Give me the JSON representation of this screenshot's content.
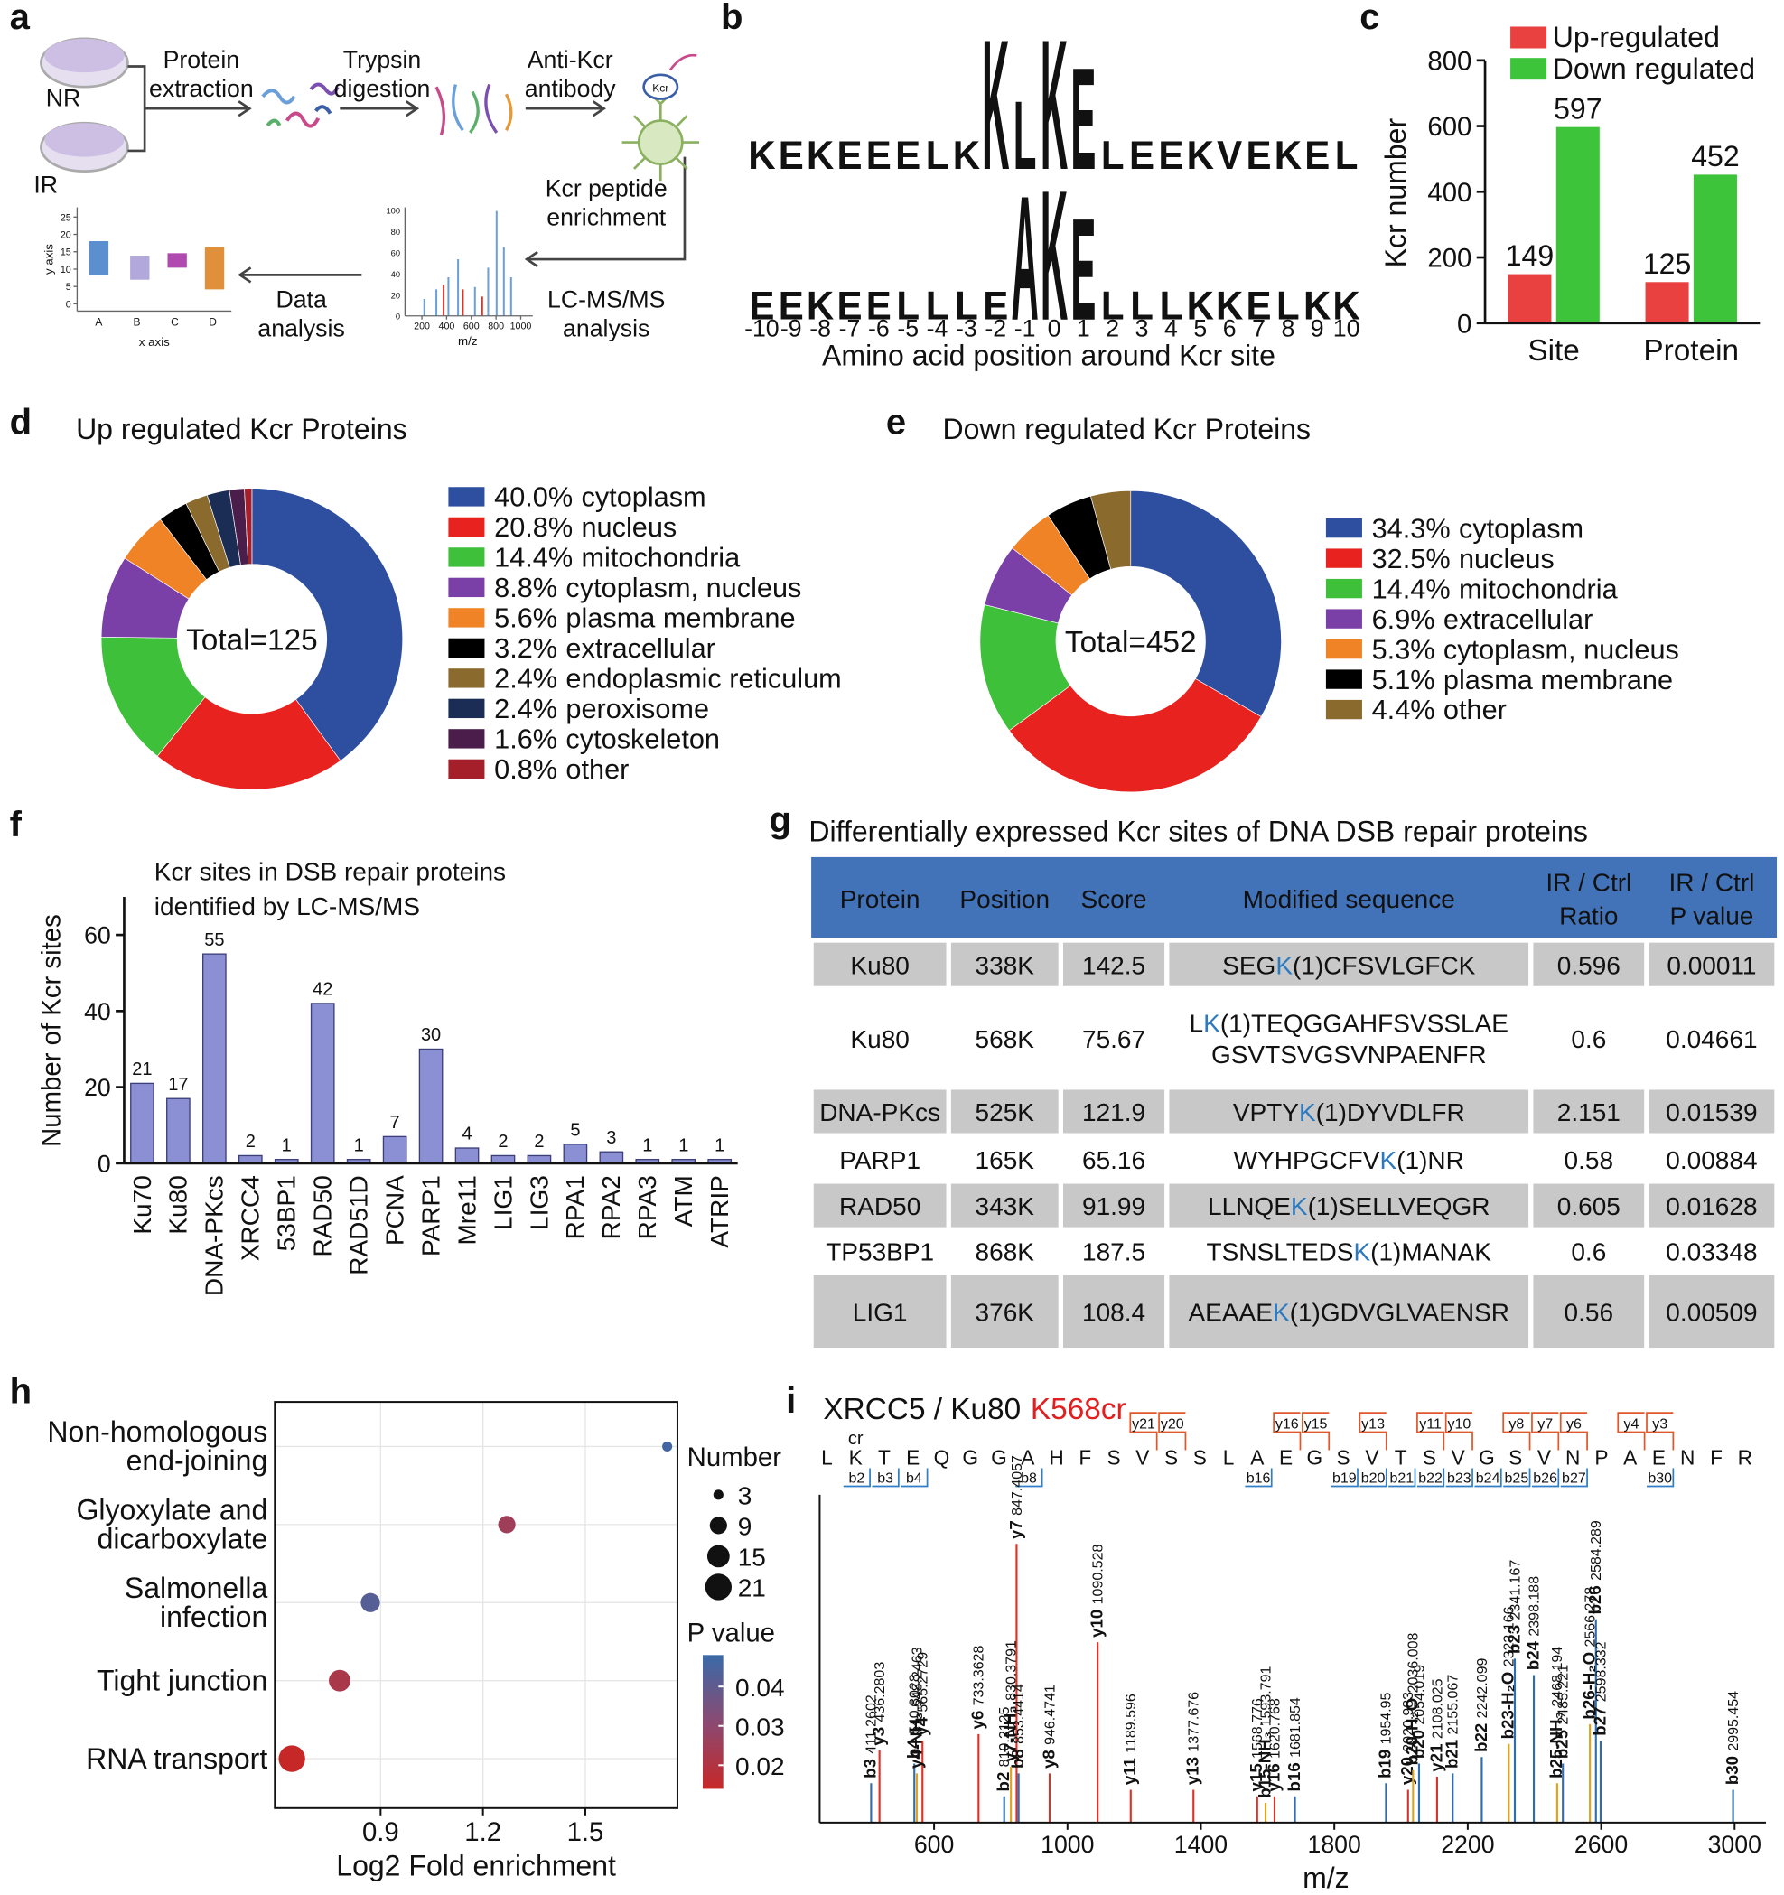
{
  "panel_labels": [
    "a",
    "b",
    "c",
    "d",
    "e",
    "f",
    "g",
    "h",
    "i"
  ],
  "workflow": {
    "samples": [
      "NR",
      "IR"
    ],
    "steps": [
      [
        "Protein",
        "extraction"
      ],
      [
        "Trypsin",
        "digestion"
      ],
      [
        "Anti-Kcr",
        "antibody"
      ],
      [
        "Kcr peptide",
        "enrichment"
      ],
      [
        "LC-MS/MS",
        "analysis"
      ],
      [
        "Data",
        "analysis"
      ]
    ],
    "antibody_label": "Kcr",
    "boxplot_icon": {
      "yticks": [
        0,
        5,
        10,
        15,
        20,
        25
      ],
      "categories": [
        "A",
        "B",
        "C",
        "D"
      ],
      "ylabel": "y axis",
      "xlabel": "x axis"
    },
    "spectrum_icon": {
      "xticks": [
        200,
        400,
        600,
        800,
        1000
      ],
      "yticks": [
        0,
        20,
        40,
        60,
        80,
        100
      ],
      "xlabel": "m/z"
    }
  },
  "logo": {
    "rows": [
      {
        "letters": [
          "K",
          "E",
          "K",
          "E",
          "E",
          "E",
          "L",
          "K",
          "K",
          "L",
          "K",
          "E",
          "L",
          "E",
          "E",
          "K",
          "V",
          "E",
          "K",
          "E",
          "L"
        ],
        "heights": [
          1,
          1,
          1,
          1,
          1,
          1,
          1,
          1,
          4.6,
          2.4,
          4.6,
          3.6,
          1,
          1,
          1,
          1,
          1,
          1,
          1,
          1,
          1
        ]
      },
      {
        "letters": [
          "E",
          "E",
          "K",
          "E",
          "E",
          "L",
          "L",
          "L",
          "E",
          "A",
          "K",
          "E",
          "L",
          "L",
          "L",
          "K",
          "K",
          "E",
          "L",
          "K",
          "K"
        ],
        "heights": [
          1,
          1,
          1,
          1,
          1,
          1,
          1,
          1,
          1,
          4.4,
          4.6,
          3.6,
          1,
          1,
          1,
          1,
          1,
          1,
          1,
          1,
          1
        ]
      }
    ],
    "residue_colors": {
      "K": "#2c5ca6",
      "E": "#d9232a",
      "L": "#111111",
      "A": "#111111",
      "V": "#111111"
    },
    "positions": [
      -10,
      -9,
      -8,
      -7,
      -6,
      -5,
      -4,
      -3,
      -2,
      -1,
      0,
      1,
      2,
      3,
      4,
      5,
      6,
      7,
      8,
      9,
      10
    ],
    "xlabel": "Amino acid position around Kcr site"
  },
  "chart_data": [
    {
      "type": "bar",
      "ylabel": "Kcr number",
      "categories": [
        "Site",
        "Protein"
      ],
      "series": [
        {
          "name": "Up-regulated",
          "color": "#e8413f",
          "values": [
            149,
            125
          ]
        },
        {
          "name": "Down regulated",
          "color": "#3ec43b",
          "values": [
            597,
            452
          ]
        }
      ],
      "ylim": [
        0,
        800
      ],
      "yticks": [
        0,
        200,
        400,
        600,
        800
      ]
    },
    {
      "type": "donut",
      "title": "Up regulated Kcr Proteins",
      "center_label": "Total=125",
      "categories": [
        "cytoplasm",
        "nucleus",
        "mitochondria",
        "cytoplasm, nucleus",
        "plasma membrane",
        "extracellular",
        "endoplasmic reticulum",
        "peroxisome",
        "cytoskeleton",
        "other"
      ],
      "values": [
        40.0,
        20.8,
        14.4,
        8.8,
        5.6,
        3.2,
        2.4,
        2.4,
        1.6,
        0.8
      ],
      "value_labels": [
        "40.0%",
        "20.8%",
        "14.4%",
        "8.8%",
        "5.6%",
        "3.2%",
        "2.4%",
        "2.4%",
        "1.6%",
        "0.8%"
      ],
      "colors": [
        "#2e4fa0",
        "#e8221e",
        "#3ec03a",
        "#7b3fa8",
        "#ef8326",
        "#000000",
        "#8b6a2e",
        "#1c2d55",
        "#4a1d4a",
        "#a41f2a"
      ]
    },
    {
      "type": "donut",
      "title": "Down regulated Kcr Proteins",
      "center_label": "Total=452",
      "categories": [
        "cytoplasm",
        "nucleus",
        "mitochondria",
        "extracellular",
        "cytoplasm, nucleus",
        "plasma membrane",
        "other"
      ],
      "values": [
        34.3,
        32.5,
        14.4,
        6.9,
        5.3,
        5.1,
        4.4
      ],
      "value_labels": [
        "34.3%",
        "32.5%",
        "14.4%",
        "6.9%",
        "5.3%",
        "5.1%",
        "4.4%"
      ],
      "colors": [
        "#2e4fa0",
        "#e8221e",
        "#3ec03a",
        "#7b3fa8",
        "#ef8326",
        "#000000",
        "#8b6a2e"
      ]
    },
    {
      "type": "bar",
      "title": [
        "Kcr sites in DSB repair proteins",
        "identified by LC-MS/MS"
      ],
      "ylabel": "Number of Kcr sites",
      "categories": [
        "Ku70",
        "Ku80",
        "DNA-PKcs",
        "XRCC4",
        "53BP1",
        "RAD50",
        "RAD51D",
        "PCNA",
        "PARP1",
        "Mre11",
        "LIG1",
        "LIG3",
        "RPA1",
        "RPA2",
        "RPA3",
        "ATM",
        "ATRIP"
      ],
      "values": [
        21,
        17,
        55,
        2,
        1,
        42,
        1,
        7,
        30,
        4,
        2,
        2,
        5,
        3,
        1,
        1,
        1
      ],
      "color": "#8b8fd3",
      "ylim": [
        0,
        70
      ],
      "yticks": [
        0,
        20,
        40,
        60
      ]
    },
    {
      "type": "bubble",
      "categories": [
        [
          "Non-homologous",
          "end-joining"
        ],
        [
          "Glyoxylate and",
          "dicarboxylate"
        ],
        [
          "Salmonella",
          "infection"
        ],
        [
          "Tight junction"
        ],
        [
          "RNA transport"
        ]
      ],
      "x": [
        1.74,
        1.27,
        0.87,
        0.78,
        0.64
      ],
      "sizes": [
        3,
        9,
        11,
        14,
        21
      ],
      "pvalues": [
        0.046,
        0.025,
        0.042,
        0.022,
        0.012
      ],
      "xlabel": "Log2 Fold enrichment",
      "xlim": [
        0.59,
        1.77
      ],
      "xticks": [
        0.9,
        1.2,
        1.5
      ],
      "grid": true,
      "size_title": "Number",
      "size_legend": [
        3,
        9,
        15,
        21
      ],
      "color_title": "P value",
      "clim": [
        0.014,
        0.048
      ],
      "cticks": [
        0.02,
        0.03,
        0.04
      ],
      "colors": [
        "#c62828",
        "#8a4a72",
        "#3a6aa8"
      ]
    },
    {
      "type": "spectrum",
      "title": "XRCC5 / Ku80",
      "title_highlight": "K568cr",
      "sequence": [
        "L",
        "K",
        "T",
        "E",
        "Q",
        "G",
        "G",
        "A",
        "H",
        "F",
        "S",
        "V",
        "S",
        "S",
        "L",
        "A",
        "E",
        "G",
        "S",
        "V",
        "T",
        "S",
        "V",
        "G",
        "S",
        "V",
        "N",
        "P",
        "A",
        "E",
        "N",
        "F",
        "R"
      ],
      "modification": "cr",
      "y_ions": [
        "y21",
        "y20",
        "y16",
        "y15",
        "y13",
        "y11",
        "y10",
        "y8",
        "y7",
        "y6",
        "y4",
        "y3"
      ],
      "b_ions": [
        "b2",
        "b3",
        "b4",
        "b8",
        "b16",
        "b19",
        "b20",
        "b21",
        "b22",
        "b23",
        "b24",
        "b25",
        "b26",
        "b27",
        "b30"
      ],
      "xlabel": "m/z",
      "xlim": [
        257,
        3094
      ],
      "xticks": [
        600,
        1000,
        1400,
        1800,
        2200,
        2600,
        3000
      ],
      "series": [
        {
          "color": "#d7342a",
          "x": [
            436.2803,
            565.2729,
            733.3628,
            847.4057,
            946.4741,
            1090.528,
            1189.596,
            1377.676,
            1568.776,
            1620.768,
            2020.983,
            2108.025
          ],
          "values": [
            22,
            25,
            27,
            85,
            15,
            55,
            10,
            10,
            8,
            8,
            10,
            14
          ],
          "ions": [
            "y3",
            "y4",
            "y6",
            "y7",
            "y8",
            "y10",
            "y11",
            "y13",
            "y15",
            "y16",
            "y20",
            "y21"
          ]
        },
        {
          "color": "#2e6db5",
          "x": [
            411.2602,
            540.8028,
            810.2125,
            853.4414,
            1681.854,
            1954.95,
            2054.019,
            2155.067,
            2242.099,
            2341.167,
            2398.188,
            2485.221,
            2584.289,
            2598.332,
            2995.454
          ],
          "values": [
            12,
            18,
            8,
            15,
            8,
            12,
            18,
            15,
            20,
            50,
            45,
            18,
            62,
            25,
            10
          ],
          "ions": [
            "b3",
            "b4",
            "b2",
            "b8",
            "b16",
            "b19",
            "b20",
            "b21",
            "b22",
            "b23",
            "b24",
            "b25",
            "b26",
            "b27",
            "b30"
          ]
        },
        {
          "color": "#e3a21a",
          "x": [
            548.2463,
            830.3791,
            1593.791,
            2036.008,
            2323.166,
            2468.194,
            2566.278
          ],
          "values": [
            15,
            17,
            6,
            16,
            24,
            12,
            30
          ],
          "ions": [
            "y4-NH₃",
            "y7-NH₃",
            "b15-NH₃",
            "b20-H₂O",
            "b23-H₂O",
            "b25-NH₃",
            "b26-H₂O"
          ]
        }
      ]
    }
  ],
  "table": {
    "title": "Differentially expressed Kcr sites of DNA DSB repair proteins",
    "header": [
      [
        "Protein"
      ],
      [
        "Position"
      ],
      [
        "Score"
      ],
      [
        "Modified sequence"
      ],
      [
        "IR / Ctrl",
        "Ratio"
      ],
      [
        "IR / Ctrl",
        "P value"
      ]
    ],
    "rows": [
      [
        "Ku80",
        "338K",
        "142.5",
        {
          "pre": "SEG",
          "site": "K",
          "post": "(1)CFSVLGFCK"
        },
        "0.596",
        "0.00011"
      ],
      [
        "Ku80",
        "568K",
        "75.67",
        {
          "pre": "L",
          "site": "K",
          "post": "(1)TEQGGAHFSVSSLAE",
          "line2": "GSVTSVGSVNPAENFR"
        },
        "0.6",
        "0.04661"
      ],
      [
        "DNA-PKcs",
        "525K",
        "121.9",
        {
          "pre": "VPTY",
          "site": "K",
          "post": "(1)DYVDLFR"
        },
        "2.151",
        "0.01539"
      ],
      [
        "PARP1",
        "165K",
        "65.16",
        {
          "pre": "WYHPGCFV",
          "site": "K",
          "post": "(1)NR"
        },
        "0.58",
        "0.00884"
      ],
      [
        "RAD50",
        "343K",
        "91.99",
        {
          "pre": "LLNQE",
          "site": "K",
          "post": "(1)SELLVEQGR"
        },
        "0.605",
        "0.01628"
      ],
      [
        "TP53BP1",
        "868K",
        "187.5",
        {
          "pre": "TSNSLTEDS",
          "site": "K",
          "post": "(1)MANAK"
        },
        "0.6",
        "0.03348"
      ],
      [
        "LIG1",
        "376K",
        "108.4",
        {
          "pre": "AEAAE",
          "site": "K",
          "post": "(1)GDVGLVAENSR"
        },
        "0.56",
        "0.00509"
      ]
    ]
  }
}
